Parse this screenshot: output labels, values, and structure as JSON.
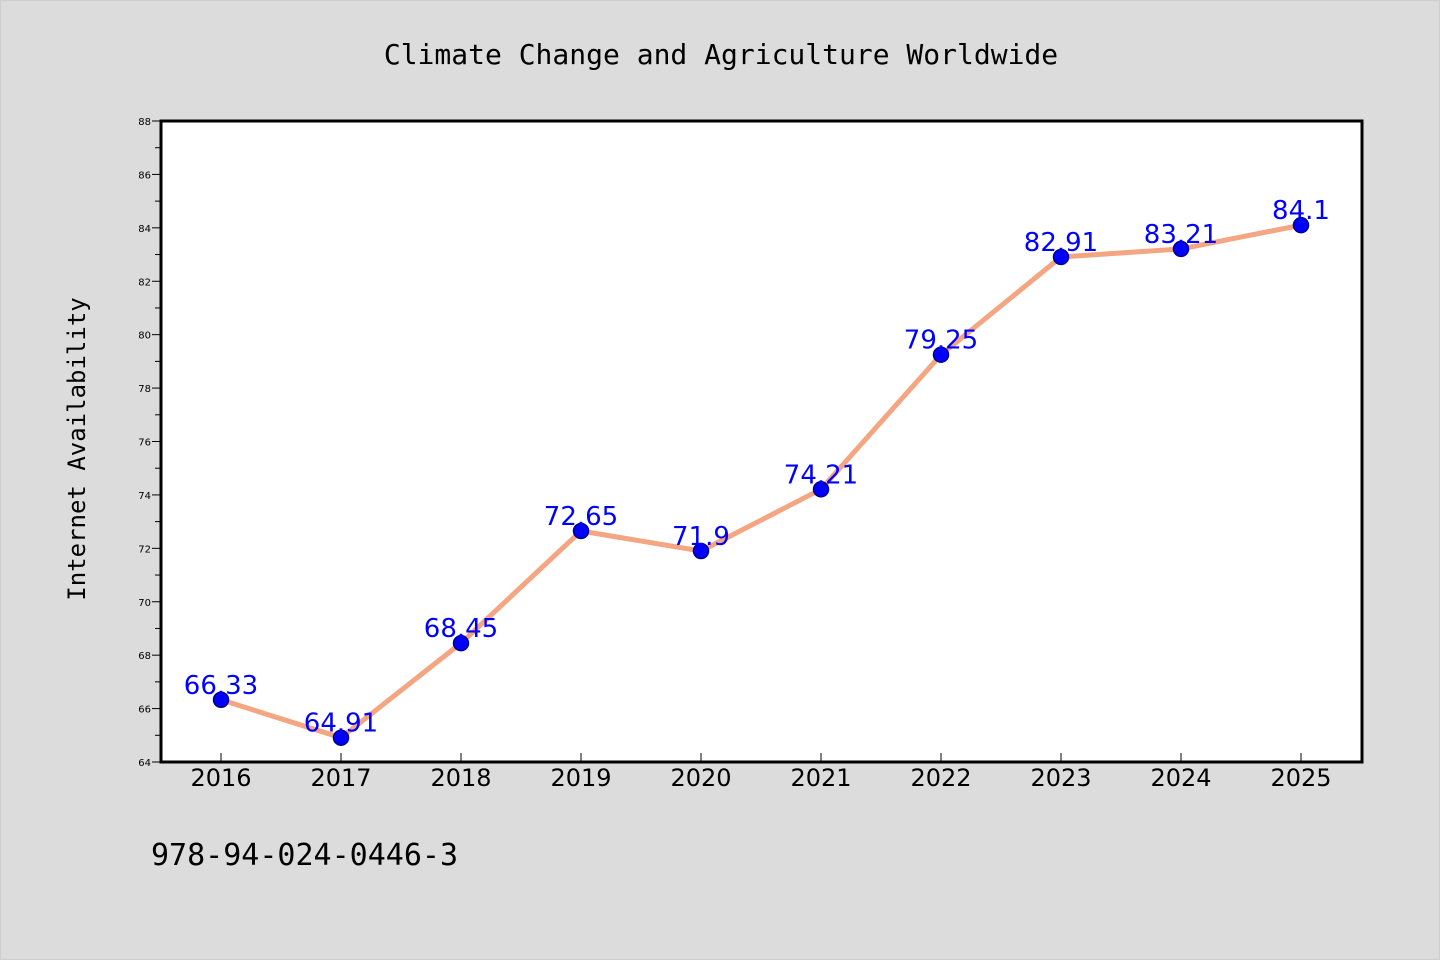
{
  "chart_data": {
    "type": "line",
    "title": "Climate Change and Agriculture Worldwide",
    "xlabel": "",
    "ylabel": "Internet Availability",
    "categories": [
      "2016",
      "2017",
      "2018",
      "2019",
      "2020",
      "2021",
      "2022",
      "2023",
      "2024",
      "2025"
    ],
    "series": [
      {
        "values": [
          66.33,
          64.91,
          68.45,
          72.65,
          71.9,
          74.21,
          79.25,
          82.91,
          83.21,
          84.1
        ],
        "labels": [
          "66.33",
          "64.91",
          "68.45",
          "72.65",
          "71.9",
          "74.21",
          "79.25",
          "82.91",
          "83.21",
          "84.1"
        ]
      }
    ],
    "ylim": [
      64,
      88
    ],
    "yticks": [
      64,
      66,
      68,
      70,
      72,
      74,
      76,
      78,
      80,
      82,
      84,
      86,
      88
    ],
    "grid": false,
    "colors": {
      "line": "#f4a582",
      "marker": "#0000ff",
      "marker_edge": "#00008b",
      "data_label": "#0000ff",
      "plot_background": "#ffffff",
      "figure_background": "#dcdcdc"
    }
  },
  "footer": {
    "isbn": "978-94-024-0446-3"
  }
}
